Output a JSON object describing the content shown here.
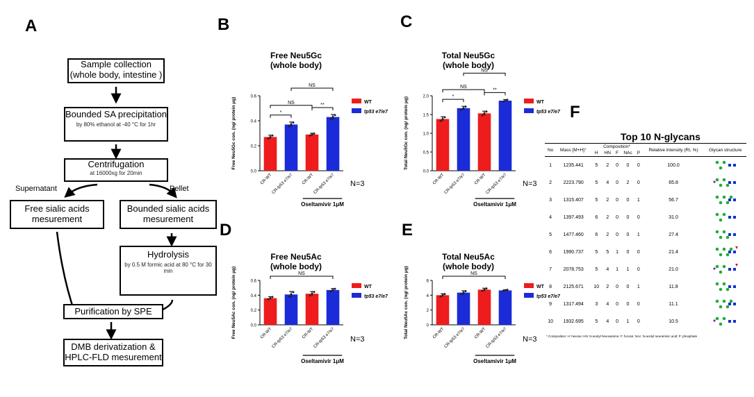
{
  "panels": {
    "a": "A",
    "b": "B",
    "c": "C",
    "d": "D",
    "e": "E",
    "f": "F"
  },
  "flow": {
    "collection": {
      "title": "Sample collection",
      "sub": "(whole body, intestine )"
    },
    "precip": {
      "title": "Bounded SA precipitation",
      "sub": "by 80% ethanol at -40 °C for 1hr"
    },
    "centri": {
      "title": "Centrifugation",
      "sub": "at 16000xg for 20min"
    },
    "supernatant": "Supernatant",
    "pellet": "Pellet",
    "free": {
      "title": "Free sialic acids mesurement"
    },
    "bounded": {
      "title": "Bounded sialic acids mesurement"
    },
    "hydro": {
      "title": "Hydrolysis",
      "sub": "by 0.5 M formic acid at 80 °C for 30 min"
    },
    "spe": {
      "title": "Purification by SPE"
    },
    "dmb": {
      "title": "DMB derivatization & HPLC-FLD mesurement"
    }
  },
  "colors": {
    "wt": "#ee1c1c",
    "mut": "#1c2bd8",
    "dot": "#222222"
  },
  "chart_data": [
    {
      "panel": "B",
      "type": "bar",
      "title": "Free Neu5Gc",
      "subtitle": "(whole body)",
      "ylabel": "Free Neu5Gc con. (ng/ protein μg)",
      "ylim": [
        0,
        0.6
      ],
      "yticks": [
        "0.0",
        "0.2",
        "0.4",
        "0.6"
      ],
      "categories": [
        "CR-WT",
        "CR-tp53 e7/e7",
        "CR-WT",
        "CR-tp53 e7/e7"
      ],
      "values": [
        0.27,
        0.37,
        0.29,
        0.43
      ],
      "errors": [
        0.015,
        0.02,
        0.01,
        0.02
      ],
      "series_colors": [
        "wt",
        "mut",
        "wt",
        "mut"
      ],
      "legend": [
        "WT",
        "tp53 e7/e7"
      ],
      "n_label": "N=3",
      "treatment": "Oseltamivir 1μM",
      "brackets": [
        {
          "a": 0,
          "b": 1,
          "label": "*",
          "level": 0
        },
        {
          "a": 2,
          "b": 3,
          "label": "**",
          "level": 0
        },
        {
          "a": 0,
          "b": 2,
          "label": "NS",
          "level": 1
        },
        {
          "a": 1,
          "b": 3,
          "label": "NS",
          "level": 2
        }
      ]
    },
    {
      "panel": "C",
      "type": "bar",
      "title": "Total Neu5Gc",
      "subtitle": "(whole body)",
      "ylabel": "Total Neu5Gc con. (ng/ protein μg)",
      "ylim": [
        0,
        2.0
      ],
      "yticks": [
        "0.0",
        "0.5",
        "1.0",
        "1.5",
        "2.0"
      ],
      "categories": [
        "CR-WT",
        "CR-tp53 e7/e7",
        "CR-WT",
        "CR-tp53 e7/e7"
      ],
      "values": [
        1.38,
        1.67,
        1.53,
        1.87
      ],
      "errors": [
        0.06,
        0.05,
        0.06,
        0.03
      ],
      "series_colors": [
        "wt",
        "mut",
        "wt",
        "mut"
      ],
      "legend": [
        "WT",
        "tp53 e7/e7"
      ],
      "n_label": "N=3",
      "treatment": "Oseltamivir 1μM",
      "brackets": [
        {
          "a": 0,
          "b": 1,
          "label": "*",
          "level": 0
        },
        {
          "a": 2,
          "b": 3,
          "label": "**",
          "level": 0
        },
        {
          "a": 0,
          "b": 2,
          "label": "NS",
          "level": 1
        },
        {
          "a": 1,
          "b": 3,
          "label": "NS",
          "level": 2
        }
      ]
    },
    {
      "panel": "D",
      "type": "bar",
      "title": "Free Neu5Ac",
      "subtitle": "(whole body)",
      "ylabel": "Free Neu5Ac con. (ng/ protein μg)",
      "ylim": [
        0,
        0.6
      ],
      "yticks": [
        "0.0",
        "0.2",
        "0.4",
        "0.6"
      ],
      "categories": [
        "CR-WT",
        "CR-tp53 e7/e7",
        "CR-WT",
        "CR-tp53 e7/e7"
      ],
      "values": [
        0.36,
        0.41,
        0.42,
        0.47
      ],
      "errors": [
        0.02,
        0.04,
        0.03,
        0.02
      ],
      "series_colors": [
        "wt",
        "mut",
        "wt",
        "mut"
      ],
      "legend": [
        "WT",
        "tp53 e7/e7"
      ],
      "n_label": "N=3",
      "treatment": "Oseltamivir 1μM",
      "brackets": [
        {
          "a": 0,
          "b": 3,
          "label": "NS",
          "level": 0
        }
      ]
    },
    {
      "panel": "E",
      "type": "bar",
      "title": "Total Neu5Ac",
      "subtitle": "(whole body)",
      "ylabel": "Total Neu5Ac con. (ng/ protein μg)",
      "ylim": [
        0,
        6
      ],
      "yticks": [
        "0",
        "2",
        "4",
        "6"
      ],
      "categories": [
        "CR-WT",
        "CR-tp53 e7/e7",
        "CR-WT",
        "CR-tp53 e7/e7"
      ],
      "values": [
        4.0,
        4.35,
        4.75,
        4.65
      ],
      "errors": [
        0.2,
        0.25,
        0.2,
        0.1
      ],
      "series_colors": [
        "wt",
        "mut",
        "wt",
        "mut"
      ],
      "legend": [
        "WT",
        "tp53 e7/e7"
      ],
      "n_label": "N=3",
      "treatment": "Oseltamivir 1μM",
      "brackets": [
        {
          "a": 0,
          "b": 3,
          "label": "NS",
          "level": 0
        }
      ]
    },
    {
      "panel": "F",
      "type": "table",
      "title": "Top 10  N-glycans",
      "headers": {
        "no": "No",
        "mass": "Mass [M+H]⁺",
        "composition": "Composition*",
        "h": "H",
        "hn": "HN",
        "f": "F",
        "nac": "NAc",
        "p": "P",
        "rel": "Relative intensity (RI, %)",
        "struct": "Glycan structure"
      },
      "rows": [
        {
          "no": "1",
          "mass": "1235.441",
          "h": "5",
          "hn": "2",
          "f": "0",
          "nac": "0",
          "p": "0",
          "rel": "100.0"
        },
        {
          "no": "2",
          "mass": "2223.790",
          "h": "5",
          "hn": "4",
          "f": "0",
          "nac": "2",
          "p": "0",
          "rel": "65.8"
        },
        {
          "no": "3",
          "mass": "1315.407",
          "h": "5",
          "hn": "2",
          "f": "0",
          "nac": "0",
          "p": "1",
          "rel": "56.7"
        },
        {
          "no": "4",
          "mass": "1397.493",
          "h": "6",
          "hn": "2",
          "f": "0",
          "nac": "0",
          "p": "0",
          "rel": "31.0"
        },
        {
          "no": "5",
          "mass": "1477.460",
          "h": "6",
          "hn": "2",
          "f": "0",
          "nac": "0",
          "p": "1",
          "rel": "27.4"
        },
        {
          "no": "6",
          "mass": "1990.737",
          "h": "5",
          "hn": "5",
          "f": "1",
          "nac": "0",
          "p": "0",
          "rel": "21.4"
        },
        {
          "no": "7",
          "mass": "2078.753",
          "h": "5",
          "hn": "4",
          "f": "1",
          "nac": "1",
          "p": "0",
          "rel": "21.0"
        },
        {
          "no": "8",
          "mass": "2125.671",
          "h": "10",
          "hn": "2",
          "f": "0",
          "nac": "0",
          "p": "1",
          "rel": "11.8"
        },
        {
          "no": "9",
          "mass": "1317.494",
          "h": "3",
          "hn": "4",
          "f": "0",
          "nac": "0",
          "p": "0",
          "rel": "11.1"
        },
        {
          "no": "10",
          "mass": "1932.695",
          "h": "5",
          "hn": "4",
          "f": "0",
          "nac": "1",
          "p": "0",
          "rel": "10.5"
        }
      ],
      "footnote": "* Composition: H: hexose; HN: N-acetyl hexosamine; F: fucose; NAc: N-acetyl neuraminic acid; P: phosphate"
    }
  ]
}
